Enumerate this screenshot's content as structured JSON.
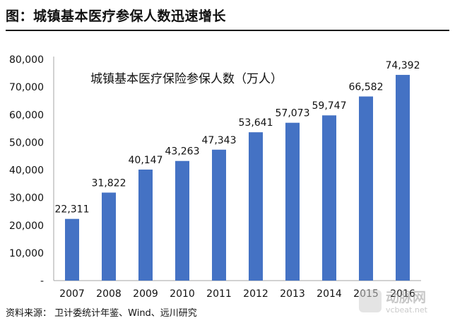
{
  "figure": {
    "title": "图：城镇基本医疗参保人数迅速增长",
    "source": "资料来源：  卫计委统计年鉴、Wind、远川研究"
  },
  "watermark": {
    "name": "动脉网",
    "url": "vcbeat.net"
  },
  "colors": {
    "bar": "#4472C4",
    "axis": "#a6a6a6",
    "text": "#111111"
  },
  "chart_data": {
    "type": "bar",
    "title": "",
    "series_label": "城镇基本医疗保险参保人数（万人）",
    "categories": [
      "2007",
      "2008",
      "2009",
      "2010",
      "2011",
      "2012",
      "2013",
      "2014",
      "2015",
      "2016"
    ],
    "values": [
      22311,
      31822,
      40147,
      43263,
      47343,
      53641,
      57073,
      59747,
      66582,
      74392
    ],
    "value_labels": [
      "22,311",
      "31,822",
      "40,147",
      "43,263",
      "47,343",
      "53,641",
      "57,073",
      "59,747",
      "66,582",
      "74,392"
    ],
    "ylim": [
      0,
      80000
    ],
    "yticks": [
      0,
      10000,
      20000,
      30000,
      40000,
      50000,
      60000,
      70000,
      80000
    ],
    "ytick_labels": [
      "-",
      "10,000",
      "20,000",
      "30,000",
      "40,000",
      "50,000",
      "60,000",
      "70,000",
      "80,000"
    ],
    "xlabel": "",
    "ylabel": "",
    "grid": false,
    "legend": false
  }
}
